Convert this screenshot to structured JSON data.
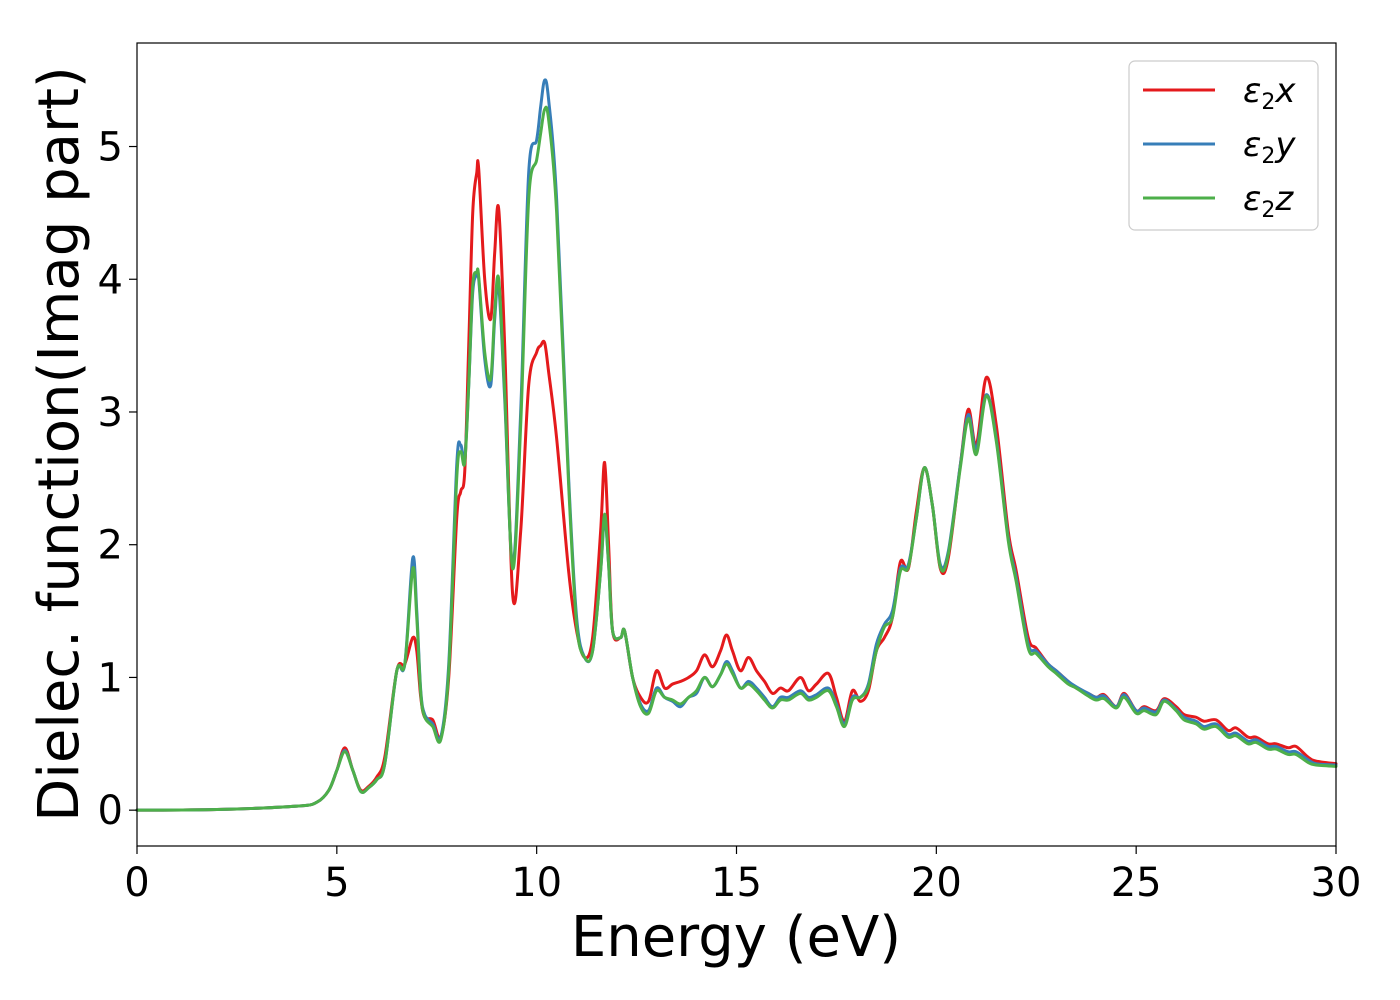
{
  "chart_data": {
    "type": "line",
    "xlabel": "Energy (eV)",
    "ylabel": "Dielec. function(Imag part)",
    "xlim": [
      0,
      30
    ],
    "ylim": [
      -0.27,
      5.78
    ],
    "xticks": [
      0,
      5,
      10,
      15,
      20,
      25,
      30
    ],
    "yticks": [
      0,
      1,
      2,
      3,
      4,
      5
    ],
    "grid": false,
    "legend_position": "top-right",
    "series": [
      {
        "name": "ε2x",
        "legend_symbol": "ε",
        "legend_sub": "2",
        "legend_var": "x",
        "color": "#e41a1c",
        "x": [
          0,
          2,
          4,
          4.5,
          4.8,
          5.0,
          5.2,
          5.4,
          5.6,
          5.8,
          6.0,
          6.2,
          6.5,
          6.7,
          6.9,
          7.0,
          7.1,
          7.2,
          7.4,
          7.6,
          7.8,
          8.0,
          8.1,
          8.2,
          8.3,
          8.4,
          8.5,
          8.55,
          8.7,
          8.85,
          8.95,
          9.05,
          9.2,
          9.4,
          9.6,
          9.8,
          10.0,
          10.1,
          10.2,
          10.3,
          10.5,
          10.8,
          11.0,
          11.2,
          11.4,
          11.6,
          11.7,
          11.8,
          11.9,
          12.1,
          12.2,
          12.4,
          12.6,
          12.8,
          13.0,
          13.2,
          13.4,
          13.6,
          13.8,
          14.0,
          14.2,
          14.4,
          14.6,
          14.75,
          14.9,
          15.1,
          15.3,
          15.5,
          15.7,
          15.9,
          16.1,
          16.3,
          16.6,
          16.8,
          17.0,
          17.3,
          17.5,
          17.7,
          17.9,
          18.1,
          18.3,
          18.5,
          18.7,
          18.9,
          19.1,
          19.3,
          19.5,
          19.7,
          19.9,
          20.1,
          20.3,
          20.6,
          20.8,
          21.0,
          21.25,
          21.5,
          21.8,
          22.0,
          22.3,
          22.5,
          22.8,
          23.0,
          23.3,
          23.5,
          23.8,
          24.0,
          24.2,
          24.5,
          24.7,
          25.0,
          25.2,
          25.5,
          25.7,
          26.0,
          26.2,
          26.5,
          26.7,
          27.0,
          27.3,
          27.5,
          27.8,
          28.0,
          28.3,
          28.5,
          28.8,
          29.0,
          29.3,
          29.5,
          30
        ],
        "y": [
          0,
          0.005,
          0.03,
          0.06,
          0.15,
          0.3,
          0.47,
          0.3,
          0.15,
          0.18,
          0.25,
          0.4,
          1.05,
          1.1,
          1.3,
          1.2,
          0.85,
          0.7,
          0.68,
          0.55,
          1.0,
          2.2,
          2.4,
          2.55,
          3.5,
          4.5,
          4.8,
          4.83,
          4.0,
          3.7,
          4.2,
          4.53,
          3.5,
          1.62,
          2.1,
          3.2,
          3.45,
          3.5,
          3.52,
          3.3,
          2.8,
          1.8,
          1.35,
          1.15,
          1.3,
          2.1,
          2.62,
          2.0,
          1.35,
          1.3,
          1.35,
          1.0,
          0.85,
          0.82,
          1.05,
          0.92,
          0.95,
          0.97,
          1.0,
          1.05,
          1.17,
          1.08,
          1.2,
          1.32,
          1.2,
          1.05,
          1.15,
          1.05,
          0.97,
          0.88,
          0.92,
          0.9,
          1.0,
          0.9,
          0.95,
          1.03,
          0.85,
          0.67,
          0.9,
          0.82,
          0.9,
          1.2,
          1.3,
          1.45,
          1.87,
          1.82,
          2.25,
          2.58,
          2.3,
          1.82,
          1.9,
          2.6,
          3.02,
          2.75,
          3.26,
          2.9,
          2.1,
          1.8,
          1.3,
          1.22,
          1.1,
          1.05,
          0.97,
          0.92,
          0.88,
          0.85,
          0.87,
          0.78,
          0.88,
          0.75,
          0.78,
          0.75,
          0.84,
          0.78,
          0.72,
          0.7,
          0.67,
          0.68,
          0.6,
          0.62,
          0.55,
          0.55,
          0.5,
          0.5,
          0.47,
          0.48,
          0.4,
          0.37,
          0.35
        ]
      },
      {
        "name": "ε2y",
        "legend_symbol": "ε",
        "legend_sub": "2",
        "legend_var": "y",
        "color": "#377eb8",
        "x": [
          0,
          2,
          4,
          4.5,
          4.8,
          5.0,
          5.2,
          5.4,
          5.6,
          5.8,
          6.0,
          6.2,
          6.5,
          6.7,
          6.9,
          7.0,
          7.1,
          7.2,
          7.4,
          7.6,
          7.8,
          8.0,
          8.1,
          8.2,
          8.3,
          8.4,
          8.5,
          8.55,
          8.7,
          8.85,
          8.95,
          9.05,
          9.2,
          9.4,
          9.6,
          9.8,
          10.0,
          10.1,
          10.2,
          10.3,
          10.5,
          10.8,
          11.0,
          11.2,
          11.4,
          11.6,
          11.7,
          11.8,
          11.9,
          12.1,
          12.2,
          12.4,
          12.6,
          12.8,
          13.0,
          13.2,
          13.4,
          13.6,
          13.8,
          14.0,
          14.2,
          14.4,
          14.6,
          14.75,
          14.9,
          15.1,
          15.3,
          15.5,
          15.7,
          15.9,
          16.1,
          16.3,
          16.6,
          16.8,
          17.0,
          17.3,
          17.5,
          17.7,
          17.9,
          18.1,
          18.3,
          18.5,
          18.7,
          18.9,
          19.1,
          19.3,
          19.5,
          19.7,
          19.9,
          20.1,
          20.3,
          20.6,
          20.8,
          21.0,
          21.25,
          21.5,
          21.8,
          22.0,
          22.3,
          22.5,
          22.8,
          23.0,
          23.3,
          23.5,
          23.8,
          24.0,
          24.2,
          24.5,
          24.7,
          25.0,
          25.2,
          25.5,
          25.7,
          26.0,
          26.2,
          26.5,
          26.7,
          27.0,
          27.3,
          27.5,
          27.8,
          28.0,
          28.3,
          28.5,
          28.8,
          29.0,
          29.3,
          29.5,
          30
        ],
        "y": [
          0,
          0.005,
          0.03,
          0.06,
          0.15,
          0.3,
          0.45,
          0.3,
          0.14,
          0.17,
          0.23,
          0.35,
          1.05,
          1.1,
          1.9,
          1.5,
          0.9,
          0.72,
          0.65,
          0.55,
          1.1,
          2.6,
          2.75,
          2.65,
          3.2,
          3.9,
          4.03,
          4.0,
          3.4,
          3.2,
          3.7,
          3.95,
          3.1,
          1.85,
          3.0,
          4.8,
          5.05,
          5.3,
          5.5,
          5.35,
          4.6,
          2.5,
          1.45,
          1.15,
          1.2,
          1.8,
          2.2,
          1.85,
          1.35,
          1.3,
          1.35,
          1.0,
          0.8,
          0.75,
          0.92,
          0.85,
          0.82,
          0.78,
          0.85,
          0.88,
          1.0,
          0.93,
          1.02,
          1.12,
          1.05,
          0.92,
          0.97,
          0.92,
          0.85,
          0.78,
          0.85,
          0.85,
          0.9,
          0.85,
          0.87,
          0.92,
          0.8,
          0.65,
          0.85,
          0.85,
          0.95,
          1.25,
          1.4,
          1.5,
          1.82,
          1.85,
          2.2,
          2.58,
          2.3,
          1.85,
          1.95,
          2.6,
          2.98,
          2.72,
          3.13,
          2.8,
          2.05,
          1.75,
          1.25,
          1.2,
          1.1,
          1.05,
          0.97,
          0.93,
          0.88,
          0.85,
          0.86,
          0.78,
          0.87,
          0.75,
          0.77,
          0.74,
          0.83,
          0.76,
          0.7,
          0.67,
          0.63,
          0.65,
          0.57,
          0.58,
          0.52,
          0.53,
          0.48,
          0.48,
          0.44,
          0.44,
          0.38,
          0.35,
          0.34
        ]
      },
      {
        "name": "ε2z",
        "legend_symbol": "ε",
        "legend_sub": "2",
        "legend_var": "z",
        "color": "#4daf4a",
        "x": [
          0,
          2,
          4,
          4.5,
          4.8,
          5.0,
          5.2,
          5.4,
          5.6,
          5.8,
          6.0,
          6.2,
          6.5,
          6.7,
          6.9,
          7.0,
          7.1,
          7.2,
          7.4,
          7.6,
          7.8,
          8.0,
          8.1,
          8.2,
          8.3,
          8.4,
          8.5,
          8.55,
          8.7,
          8.85,
          8.95,
          9.05,
          9.2,
          9.4,
          9.6,
          9.8,
          10.0,
          10.1,
          10.2,
          10.3,
          10.5,
          10.8,
          11.0,
          11.2,
          11.4,
          11.6,
          11.7,
          11.8,
          11.9,
          12.1,
          12.2,
          12.4,
          12.6,
          12.8,
          13.0,
          13.2,
          13.4,
          13.6,
          13.8,
          14.0,
          14.2,
          14.4,
          14.6,
          14.75,
          14.9,
          15.1,
          15.3,
          15.5,
          15.7,
          15.9,
          16.1,
          16.3,
          16.6,
          16.8,
          17.0,
          17.3,
          17.5,
          17.7,
          17.9,
          18.1,
          18.3,
          18.5,
          18.7,
          18.9,
          19.1,
          19.3,
          19.5,
          19.7,
          19.9,
          20.1,
          20.3,
          20.6,
          20.8,
          21.0,
          21.25,
          21.5,
          21.8,
          22.0,
          22.3,
          22.5,
          22.8,
          23.0,
          23.3,
          23.5,
          23.8,
          24.0,
          24.2,
          24.5,
          24.7,
          25.0,
          25.2,
          25.5,
          25.7,
          26.0,
          26.2,
          26.5,
          26.7,
          27.0,
          27.3,
          27.5,
          27.8,
          28.0,
          28.3,
          28.5,
          28.8,
          29.0,
          29.3,
          29.5,
          30
        ],
        "y": [
          0,
          0.005,
          0.03,
          0.06,
          0.15,
          0.3,
          0.44,
          0.3,
          0.14,
          0.17,
          0.23,
          0.35,
          1.05,
          1.1,
          1.82,
          1.45,
          0.88,
          0.7,
          0.63,
          0.53,
          1.05,
          2.5,
          2.7,
          2.62,
          3.2,
          3.95,
          4.05,
          4.02,
          3.45,
          3.25,
          3.75,
          4.0,
          3.15,
          1.82,
          2.9,
          4.6,
          4.9,
          5.1,
          5.28,
          5.2,
          4.5,
          2.45,
          1.4,
          1.15,
          1.2,
          1.8,
          2.23,
          1.85,
          1.35,
          1.3,
          1.35,
          1.0,
          0.78,
          0.73,
          0.9,
          0.85,
          0.83,
          0.8,
          0.85,
          0.9,
          1.0,
          0.93,
          1.02,
          1.1,
          1.03,
          0.92,
          0.95,
          0.9,
          0.83,
          0.77,
          0.83,
          0.83,
          0.88,
          0.83,
          0.85,
          0.9,
          0.78,
          0.63,
          0.83,
          0.85,
          0.93,
          1.2,
          1.38,
          1.45,
          1.8,
          1.83,
          2.2,
          2.58,
          2.3,
          1.83,
          1.93,
          2.58,
          2.95,
          2.68,
          3.12,
          2.78,
          2.03,
          1.72,
          1.22,
          1.18,
          1.08,
          1.03,
          0.95,
          0.92,
          0.86,
          0.83,
          0.84,
          0.77,
          0.85,
          0.73,
          0.75,
          0.72,
          0.82,
          0.75,
          0.68,
          0.65,
          0.61,
          0.63,
          0.55,
          0.56,
          0.5,
          0.51,
          0.46,
          0.46,
          0.42,
          0.42,
          0.36,
          0.34,
          0.33
        ]
      }
    ]
  }
}
